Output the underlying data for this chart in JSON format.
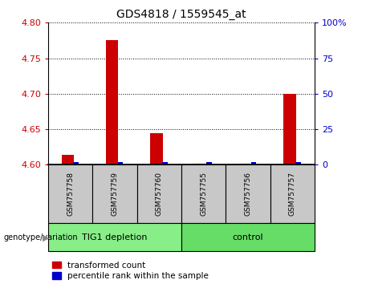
{
  "title": "GDS4818 / 1559545_at",
  "samples": [
    "GSM757758",
    "GSM757759",
    "GSM757760",
    "GSM757755",
    "GSM757756",
    "GSM757757"
  ],
  "groups": [
    "TIG1 depletion",
    "TIG1 depletion",
    "TIG1 depletion",
    "control",
    "control",
    "control"
  ],
  "transformed_count": [
    4.614,
    4.775,
    4.644,
    4.602,
    4.602,
    4.7
  ],
  "percentile_rank": [
    2,
    2,
    2,
    2,
    2,
    2
  ],
  "ylim_left": [
    4.6,
    4.8
  ],
  "yticks_left": [
    4.6,
    4.65,
    4.7,
    4.75,
    4.8
  ],
  "ylim_right": [
    0,
    100
  ],
  "yticks_right": [
    0,
    25,
    50,
    75,
    100
  ],
  "bar_bottom": 4.6,
  "red_color": "#cc0000",
  "blue_color": "#0000cc",
  "gray_box_color": "#c8c8c8",
  "group_colors": {
    "TIG1 depletion": "#88ee88",
    "control": "#66dd66"
  },
  "left_tick_color": "#cc0000",
  "right_tick_color": "#0000cc",
  "legend_items": [
    "transformed count",
    "percentile rank within the sample"
  ],
  "genotype_label": "genotype/variation"
}
